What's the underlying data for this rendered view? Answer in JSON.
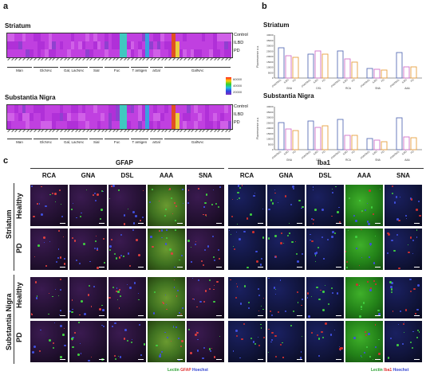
{
  "panels": {
    "a": {
      "letter": "a",
      "heatmaps": [
        {
          "title": "Striatum",
          "rows": [
            "Control",
            "ILBD",
            "PD"
          ]
        },
        {
          "title": "Substantia Nigra",
          "rows": [
            "Control",
            "ILBD",
            "PD"
          ]
        }
      ],
      "groups": [
        "Man",
        "GlcNAc",
        "Gal, LacNAc",
        "Sial",
        "Fuc",
        "T antigen",
        "aGal",
        "GalNAc"
      ],
      "colorbar": {
        "ticks": [
          "60000",
          "40000",
          "20000"
        ]
      }
    },
    "b": {
      "letter": "b",
      "charts": [
        {
          "title": "Striatum",
          "ylabel": "Fluorescence a.u.",
          "yticks": [
            "0",
            "5000",
            "10000",
            "15000",
            "20000",
            "25000",
            "30000",
            "35000",
            "40000"
          ],
          "groups": [
            "GNA",
            "DSL",
            "RCA",
            "SNA",
            "AAA"
          ],
          "bar_labels": [
            "CONTROL",
            "ILBD",
            "PD"
          ]
        },
        {
          "title": "Substantia Nigra",
          "ylabel": "Fluorescence a.u.",
          "yticks": [
            "0",
            "5000",
            "10000",
            "15000",
            "20000",
            "25000",
            "30000",
            "35000",
            "40000"
          ],
          "groups": [
            "GNA",
            "DSL",
            "RCA",
            "SNA",
            "AAA"
          ],
          "bar_labels": [
            "CONTROL",
            "ILBD",
            "PD"
          ]
        }
      ]
    },
    "c": {
      "letter": "c",
      "stain_left": "GFAP",
      "stain_right": "Iba1",
      "columns": [
        "RCA",
        "GNA",
        "DSL",
        "AAA",
        "SNA"
      ],
      "region_labels": [
        "Striatum",
        "Substantia Nigra"
      ],
      "condition_labels": [
        "Healthy",
        "PD",
        "Healthy",
        "PD"
      ],
      "caption_left": {
        "lectin": "Lectin",
        "marker": "GFAP",
        "nuclear": "Hoechst"
      },
      "caption_right": {
        "lectin": "Lectin",
        "marker": "Iba1",
        "nuclear": "Hoechst"
      }
    }
  },
  "colors": {
    "lectin": "#2ecc40",
    "gfap": "#e03030",
    "iba1": "#e03030",
    "hoechst": "#3040d0",
    "control_bar": "#5b6fb5",
    "ilbd_bar": "#d070c8",
    "pd_bar": "#e8a040"
  }
}
